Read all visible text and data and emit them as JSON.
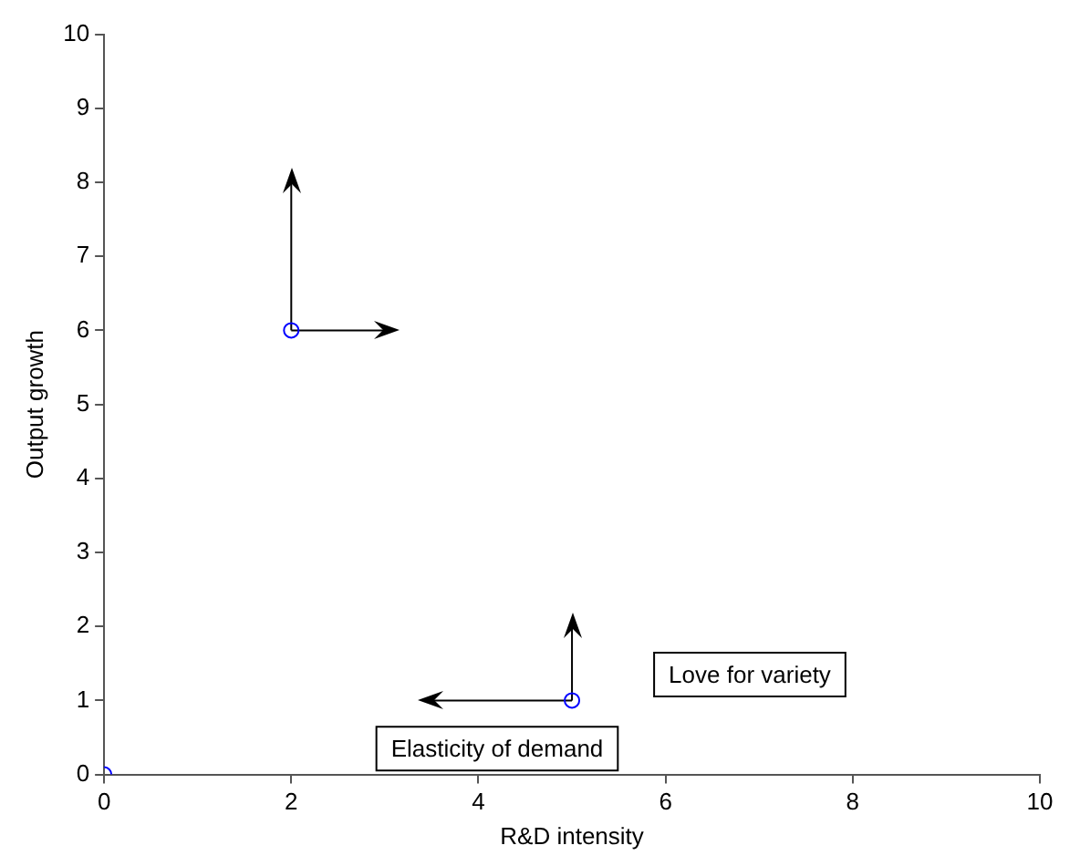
{
  "chart_data": {
    "type": "scatter",
    "xlabel": "R&D intensity",
    "ylabel": "Output growth",
    "xlim": [
      0,
      10
    ],
    "xticks": [
      0,
      2,
      4,
      6,
      8,
      10
    ],
    "ylim": [
      0,
      10
    ],
    "yticks": [
      0,
      1,
      2,
      3,
      4,
      5,
      6,
      7,
      8,
      9,
      10
    ],
    "grid": false,
    "legend": false,
    "series": [
      {
        "color": "#0000ff",
        "marker": "circle",
        "x": [
          0,
          2,
          5
        ],
        "values": [
          0,
          6,
          1
        ]
      },
      {
        "type": "line",
        "color": "#000000",
        "line_style": "solid",
        "x": [
          2,
          2
        ],
        "values": [
          6,
          8
        ]
      },
      {
        "type": "line",
        "color": "#000000",
        "line_style": "solid",
        "x": [
          2,
          3
        ],
        "values": [
          6,
          6
        ]
      },
      {
        "type": "line",
        "color": "#000000",
        "line_style": "solid",
        "x": [
          5,
          5
        ],
        "values": [
          1,
          2
        ]
      },
      {
        "type": "line",
        "color": "#000000",
        "line_style": "solid",
        "x": [
          5,
          3.5
        ],
        "values": [
          1,
          1
        ]
      }
    ],
    "annotations": [
      "Love for variety",
      "Elasticity of demand"
    ]
  }
}
